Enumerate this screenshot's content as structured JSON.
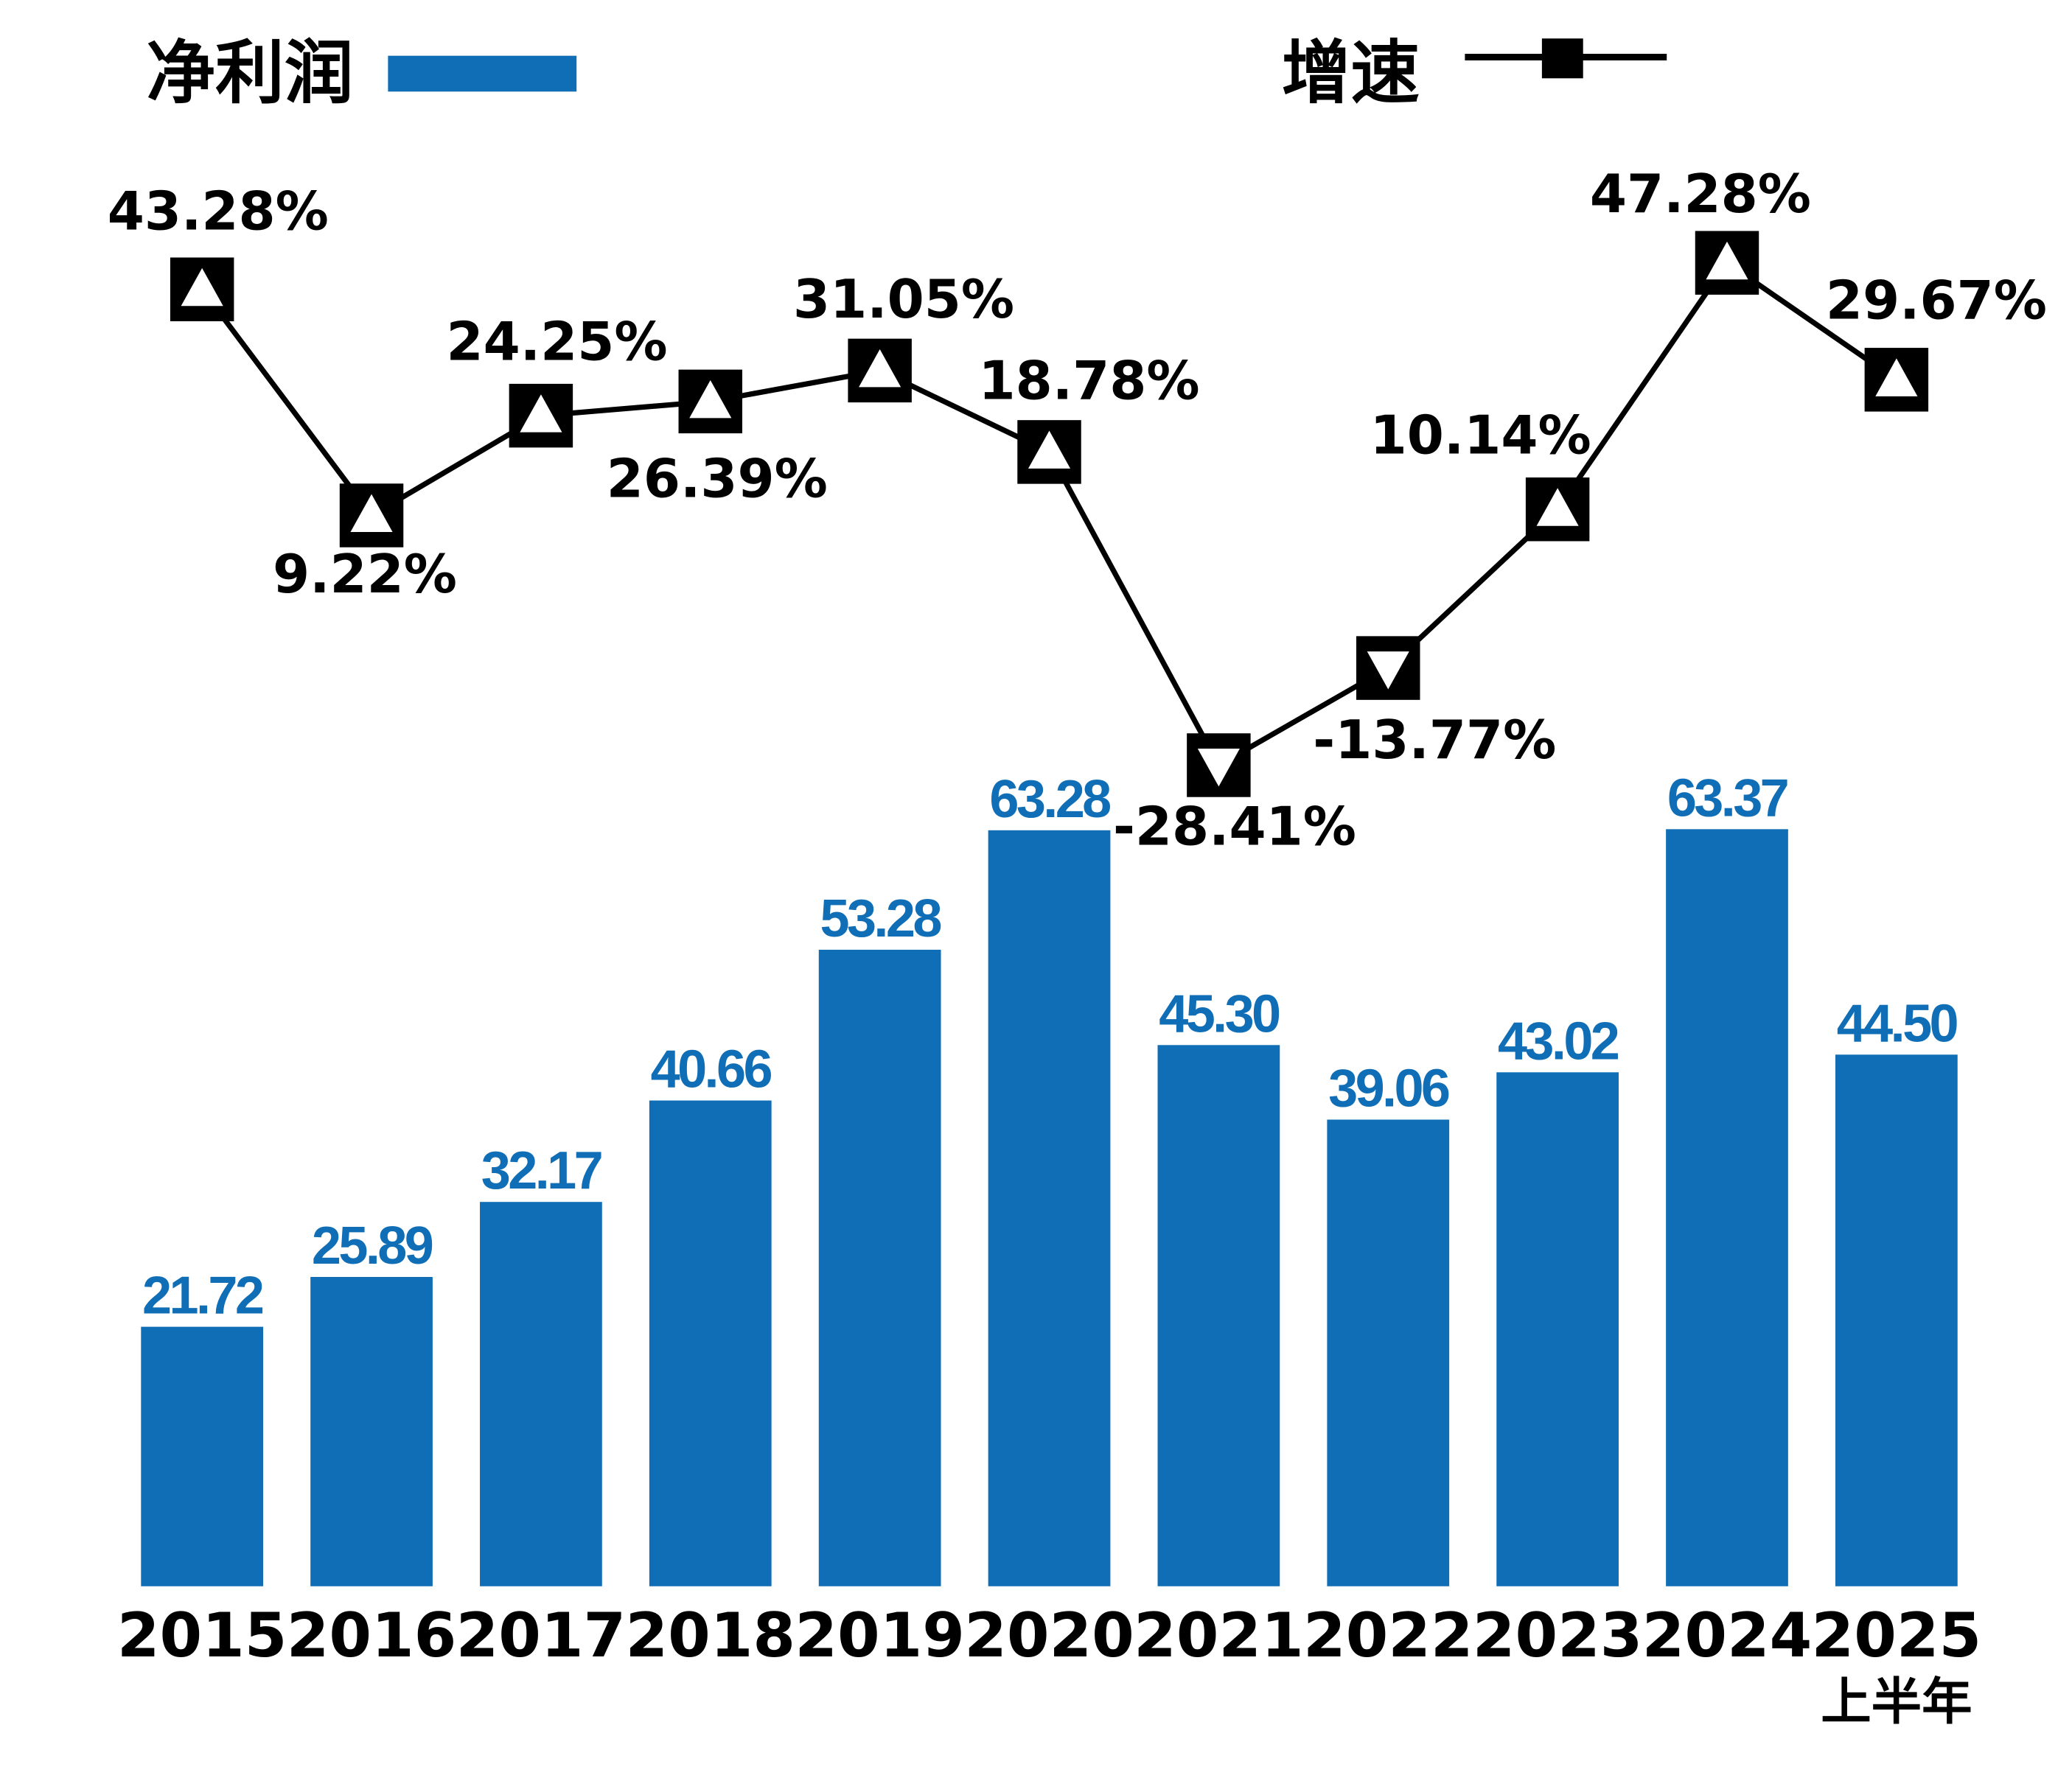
{
  "chart_data": {
    "type": "bar+line",
    "categories": [
      "2015",
      "2016",
      "2017",
      "2018",
      "2019",
      "2020",
      "2021",
      "2022",
      "2023",
      "2024",
      "2025"
    ],
    "category_sublabels": {
      "2025": "上半年"
    },
    "series": [
      {
        "name": "净利润",
        "type": "bar",
        "color": "#106eb6",
        "values": [
          21.72,
          25.89,
          32.17,
          40.66,
          53.28,
          63.28,
          45.3,
          39.06,
          43.02,
          63.37,
          44.5
        ],
        "labels": [
          "21.72",
          "25.89",
          "32.17",
          "40.66",
          "53.28",
          "63.28",
          "45.30",
          "39.06",
          "43.02",
          "63.37",
          "44.50"
        ]
      },
      {
        "name": "增速",
        "type": "line",
        "color": "#000000",
        "unit": "%",
        "values": [
          43.28,
          9.22,
          24.25,
          26.39,
          31.05,
          18.78,
          -28.41,
          -13.77,
          10.14,
          47.28,
          29.67
        ],
        "labels": [
          "43.28%",
          "9.22%",
          "24.25%",
          "26.39%",
          "31.05%",
          "18.78%",
          "-28.41%",
          "-13.77%",
          "10.14%",
          "47.28%",
          "29.67%"
        ]
      }
    ],
    "legend": {
      "bar_label": "净利润",
      "line_label": "增速",
      "placement": "top"
    },
    "grid": false
  }
}
